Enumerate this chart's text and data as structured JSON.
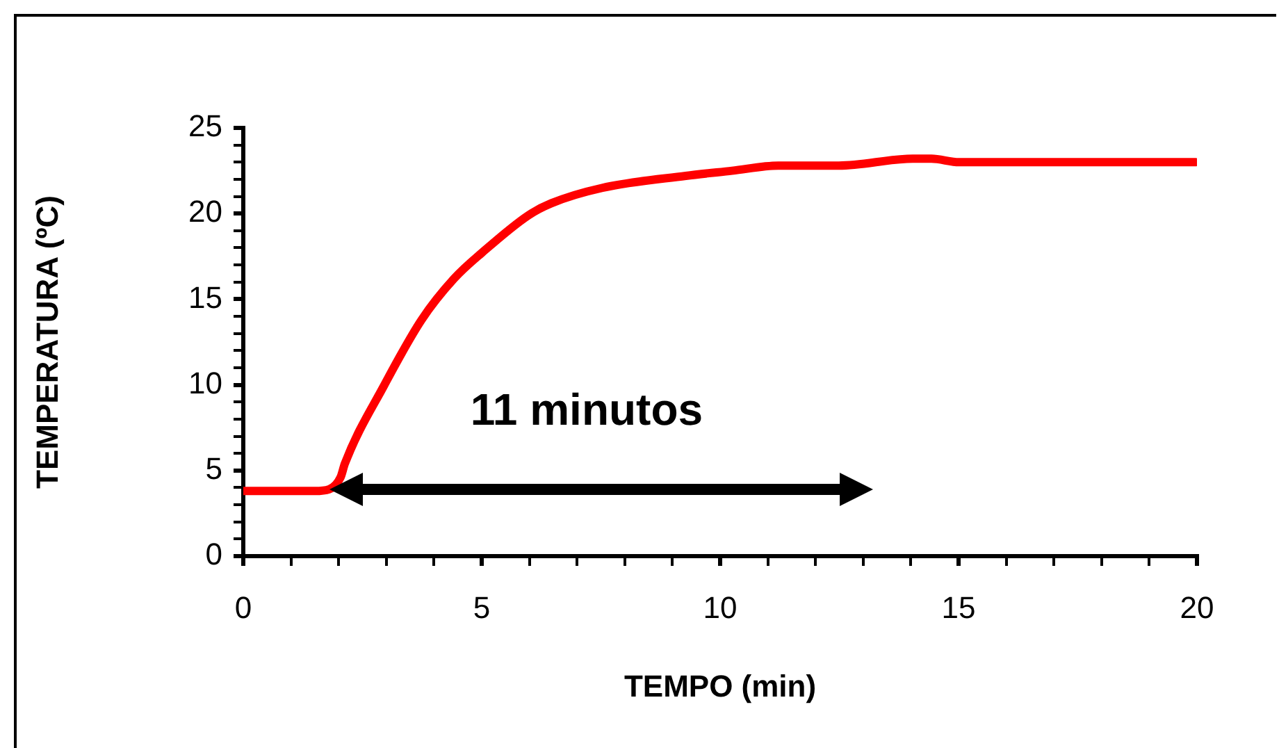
{
  "chart_data": {
    "type": "line",
    "xlabel": "TEMPO (min)",
    "ylabel": "TEMPERATURA (ºC)",
    "x": [
      0,
      1.5,
      1.8,
      2.04,
      2.13,
      2.96,
      3.74,
      4.42,
      5.0,
      5.98,
      6.46,
      7.53,
      9.28,
      10.25,
      11.22,
      12.49,
      14.04,
      14.43,
      15.01,
      19.97
    ],
    "series": [
      {
        "color": "#ff0000",
        "values": [
          3.8,
          3.8,
          3.9,
          4.6,
          5.4,
          10.0,
          13.8,
          16.2,
          17.7,
          19.9,
          20.6,
          21.5,
          22.2,
          22.5,
          22.8,
          22.8,
          23.2,
          23.2,
          23.0,
          23.0
        ]
      }
    ],
    "xlim": [
      0,
      20
    ],
    "ylim": [
      0,
      25
    ],
    "xticks": [
      0,
      {
        "value": 1,
        "label": null
      },
      {
        "value": 2,
        "label": null
      },
      {
        "value": 3,
        "label": null
      },
      {
        "value": 4,
        "label": null
      },
      5,
      {
        "value": 6,
        "label": null
      },
      {
        "value": 7,
        "label": null
      },
      {
        "value": 8,
        "label": null
      },
      {
        "value": 9,
        "label": null
      },
      10,
      {
        "value": 11,
        "label": null
      },
      {
        "value": 12,
        "label": null
      },
      {
        "value": 13,
        "label": null
      },
      {
        "value": 14,
        "label": null
      },
      15,
      {
        "value": 16,
        "label": null
      },
      {
        "value": 17,
        "label": null
      },
      {
        "value": 18,
        "label": null
      },
      {
        "value": 19,
        "label": null
      },
      20
    ],
    "yticks": [
      0,
      {
        "value": 1,
        "label": null
      },
      {
        "value": 2,
        "label": null
      },
      {
        "value": 3,
        "label": null
      },
      {
        "value": 4,
        "label": null
      },
      5,
      {
        "value": 6,
        "label": null
      },
      {
        "value": 7,
        "label": null
      },
      {
        "value": 8,
        "label": null
      },
      {
        "value": 9,
        "label": null
      },
      10,
      {
        "value": 11,
        "label": null
      },
      {
        "value": 12,
        "label": null
      },
      {
        "value": 13,
        "label": null
      },
      {
        "value": 14,
        "label": null
      },
      15,
      {
        "value": 16,
        "label": null
      },
      {
        "value": 17,
        "label": null
      },
      {
        "value": 18,
        "label": null
      },
      {
        "value": 19,
        "label": null
      },
      20,
      {
        "value": 21,
        "label": null
      },
      {
        "value": 22,
        "label": null
      },
      {
        "value": 23,
        "label": null
      },
      {
        "value": 24,
        "label": null
      },
      25
    ],
    "annotations": [
      "11 minutos"
    ],
    "marker": "none",
    "line_style": "solid",
    "grid": false,
    "legend": false
  }
}
